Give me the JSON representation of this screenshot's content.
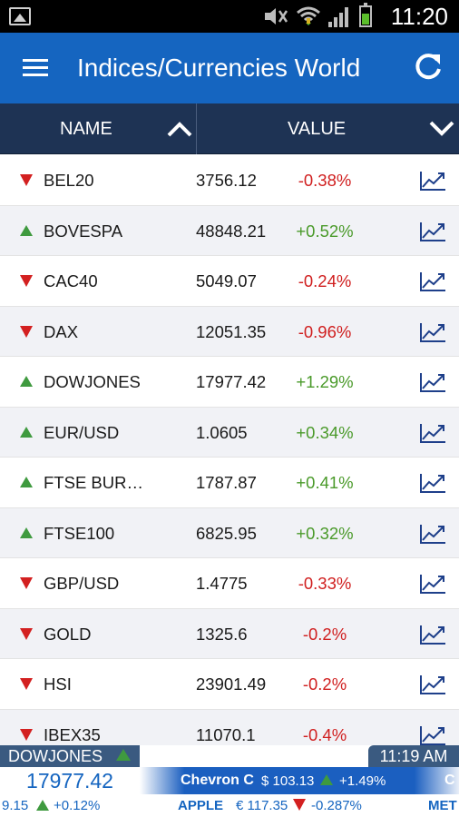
{
  "status_bar": {
    "time": "11:20",
    "icons": [
      "gallery-icon",
      "mute-icon",
      "wifi-icon",
      "signal-icon",
      "battery-icon"
    ]
  },
  "app_bar": {
    "title": "Indices/Currencies World",
    "menu_icon": "menu-icon",
    "refresh_icon": "refresh-icon",
    "background": "#1565c0"
  },
  "columns": {
    "name_label": "NAME",
    "value_label": "VALUE",
    "background": "#1e3354"
  },
  "rows": [
    {
      "name": "BEL20",
      "value": "3756.12",
      "change": "-0.38%",
      "direction": "down"
    },
    {
      "name": "BOVESPA",
      "value": "48848.21",
      "change": "+0.52%",
      "direction": "up"
    },
    {
      "name": "CAC40",
      "value": "5049.07",
      "change": "-0.24%",
      "direction": "down"
    },
    {
      "name": "DAX",
      "value": "12051.35",
      "change": "-0.96%",
      "direction": "down"
    },
    {
      "name": "DOWJONES",
      "value": "17977.42",
      "change": "+1.29%",
      "direction": "up"
    },
    {
      "name": "EUR/USD",
      "value": "1.0605",
      "change": "+0.34%",
      "direction": "up"
    },
    {
      "name": "FTSE BUR…",
      "value": "1787.87",
      "change": "+0.41%",
      "direction": "up"
    },
    {
      "name": "FTSE100",
      "value": "6825.95",
      "change": "+0.32%",
      "direction": "up"
    },
    {
      "name": "GBP/USD",
      "value": "1.4775",
      "change": "-0.33%",
      "direction": "down"
    },
    {
      "name": "GOLD",
      "value": "1325.6",
      "change": "-0.2%",
      "direction": "down"
    },
    {
      "name": "HSI",
      "value": "23901.49",
      "change": "-0.2%",
      "direction": "down"
    },
    {
      "name": "IBEX35",
      "value": "11070.1",
      "change": "-0.4%",
      "direction": "down"
    }
  ],
  "colors": {
    "negative": "#d01f1f",
    "positive": "#4a9a2a",
    "chart_icon": "#1e3f8a"
  },
  "ticker": {
    "name": "DOWJONES",
    "time": "11:19 AM",
    "value": "17977.42",
    "band": {
      "name": "Chevron C",
      "price": "$ 103.13",
      "change": "+1.49%",
      "cut": "C"
    },
    "bottom": {
      "item1_value": "9.15",
      "item1_change": "+0.12%",
      "item2_name": "APPLE",
      "item2_price": "€ 117.35",
      "item2_change": "-0.287%",
      "item3_name": "MET"
    }
  }
}
